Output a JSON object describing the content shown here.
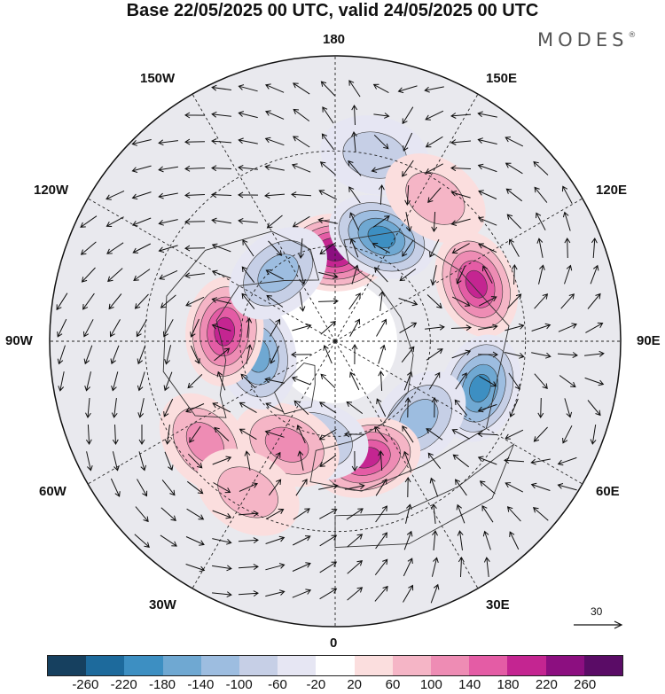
{
  "title": "Base 22/05/2025 00 UTC, valid 24/05/2025 00 UTC",
  "brand": {
    "name": "MODES",
    "mark": "®"
  },
  "longitude_labels": {
    "top": "180",
    "bottom": "0",
    "left": "90W",
    "right": "90E",
    "upper_left_1": "150W",
    "upper_left_2": "120W",
    "lower_left_1": "60W",
    "lower_left_2": "30W",
    "upper_right_1": "150E",
    "upper_right_2": "120E",
    "lower_right_1": "60E",
    "lower_right_2": "30E"
  },
  "reference_vector": {
    "value": "30"
  },
  "colorbar": {
    "ticks": [
      "-260",
      "-220",
      "-180",
      "-140",
      "-100",
      "-60",
      "-20",
      "20",
      "60",
      "100",
      "140",
      "180",
      "220",
      "260"
    ],
    "colors": [
      "#16405f",
      "#1d6a9c",
      "#3d8fc2",
      "#6fa8d2",
      "#9dbde0",
      "#c6cfe6",
      "#e6e6f3",
      "#ffffff",
      "#fbdede",
      "#f5b5c6",
      "#ee8cb4",
      "#e45ca5",
      "#c42591",
      "#8c0f80",
      "#5a0c66"
    ]
  },
  "anomalies": [
    {
      "kind": "positive",
      "level": 5,
      "lon": 180,
      "colat": 28
    },
    {
      "kind": "negative",
      "level": 4,
      "lon": 156,
      "colat": 36
    },
    {
      "kind": "positive",
      "level": 4,
      "lon": 112,
      "colat": 48
    },
    {
      "kind": "negative",
      "level": 4,
      "lon": 72,
      "colat": 48
    },
    {
      "kind": "negative",
      "level": 2,
      "lon": 47,
      "colat": 36
    },
    {
      "kind": "positive",
      "level": 4,
      "lon": 15,
      "colat": 38
    },
    {
      "kind": "negative",
      "level": 2,
      "lon": -12,
      "colat": 32
    },
    {
      "kind": "positive",
      "level": 2,
      "lon": -25,
      "colat": 36
    },
    {
      "kind": "negative",
      "level": 3,
      "lon": -80,
      "colat": 25
    },
    {
      "kind": "positive",
      "level": 4,
      "lon": -95,
      "colat": 35
    },
    {
      "kind": "negative",
      "level": 2,
      "lon": -140,
      "colat": 28
    },
    {
      "kind": "positive",
      "level": 2,
      "lon": -52,
      "colat": 52
    },
    {
      "kind": "negative",
      "level": 1,
      "lon": 168,
      "colat": 60
    },
    {
      "kind": "positive",
      "level": 1,
      "lon": 145,
      "colat": 55
    },
    {
      "kind": "positive",
      "level": 1,
      "lon": -30,
      "colat": 55
    }
  ]
}
